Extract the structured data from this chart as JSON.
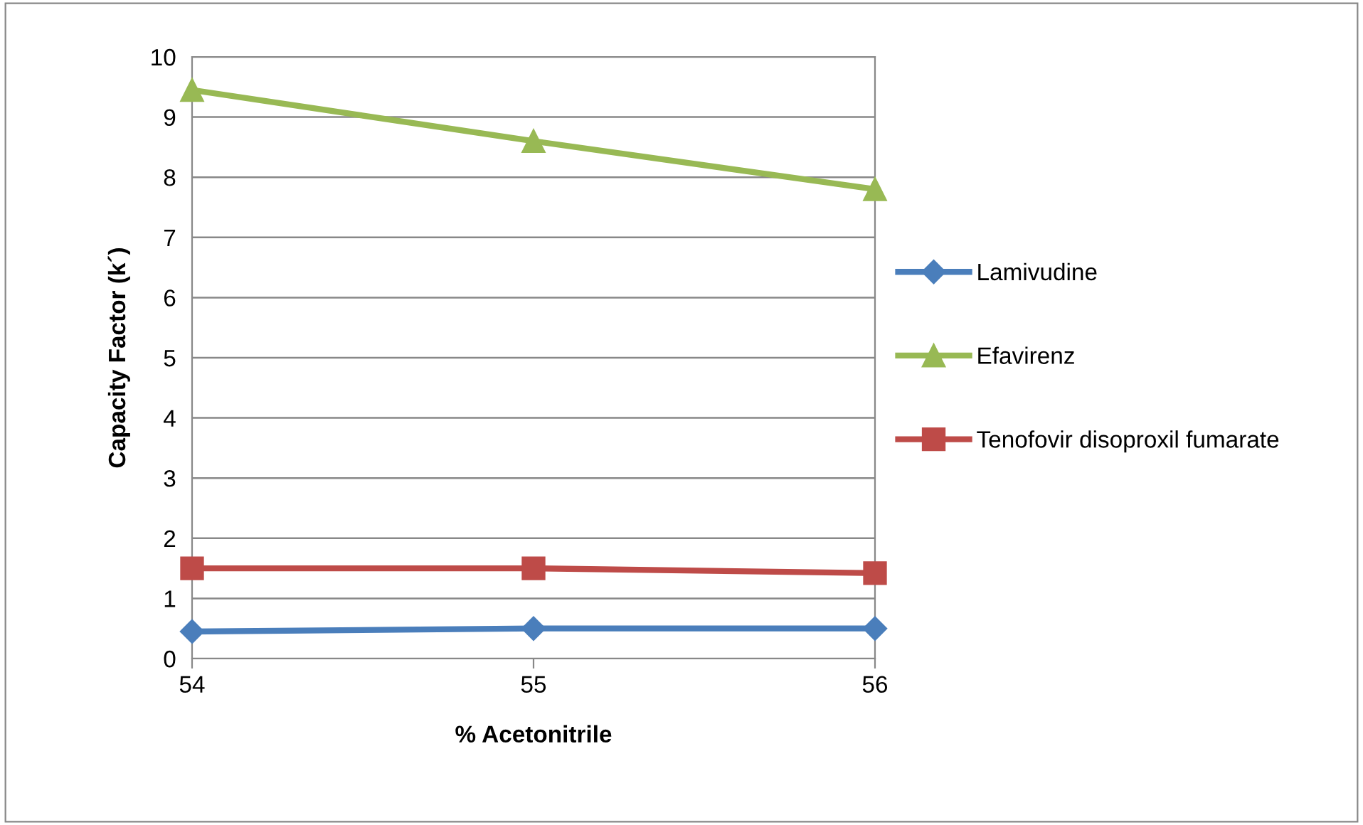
{
  "chart_data": {
    "type": "line",
    "xlabel": "% Acetonitrile",
    "ylabel": "Capacity Factor (k´)",
    "x": [
      54,
      55,
      56
    ],
    "xlim": [
      54,
      56
    ],
    "xticks": [
      54,
      55,
      56
    ],
    "ylim": [
      0,
      10
    ],
    "yticks": [
      0,
      1,
      2,
      3,
      4,
      5,
      6,
      7,
      8,
      9,
      10
    ],
    "grid": "y",
    "legend": "right",
    "line_style": "solid",
    "series": [
      {
        "name": "Lamivudine",
        "color": "#4a7ebb",
        "marker": "diamond",
        "values": [
          0.45,
          0.5,
          0.5
        ]
      },
      {
        "name": "Efavirenz",
        "color": "#98b954",
        "marker": "triangle",
        "values": [
          9.45,
          8.6,
          7.8
        ]
      },
      {
        "name": "Tenofovir disoproxil fumarate",
        "color": "#be4b48",
        "marker": "square",
        "values": [
          1.5,
          1.5,
          1.42
        ]
      }
    ]
  }
}
